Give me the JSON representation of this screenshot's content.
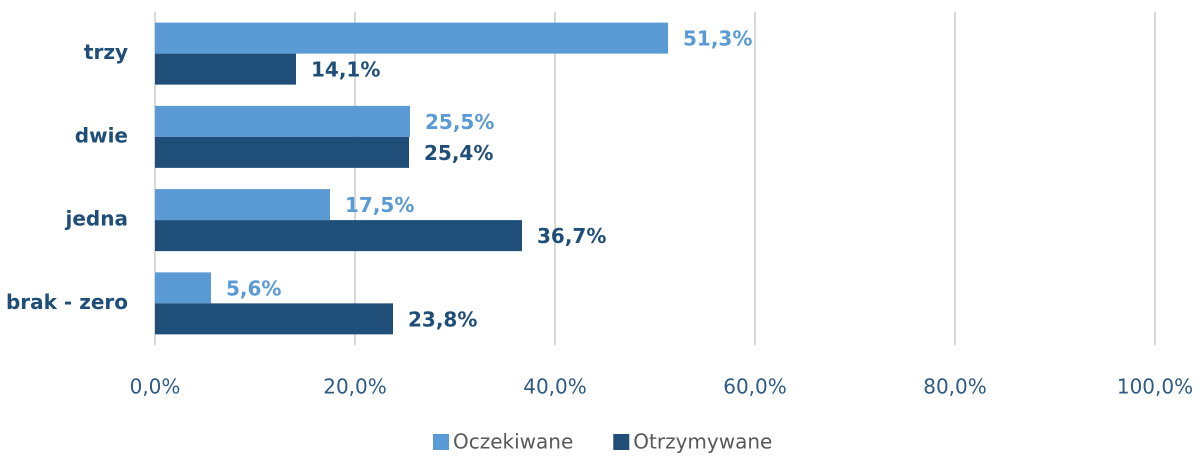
{
  "chart_data": {
    "type": "hbar",
    "categories": [
      "trzy",
      "dwie",
      "jedna",
      "brak - zero"
    ],
    "series": [
      {
        "name": "Oczekiwane",
        "color": "#5b9bd5",
        "values": [
          51.3,
          25.5,
          17.5,
          5.6
        ],
        "value_labels": [
          "51,3%",
          "25,5%",
          "17,5%",
          "5,6%"
        ]
      },
      {
        "name": "Otrzymywane",
        "color": "#1f4e79",
        "values": [
          14.1,
          25.4,
          36.7,
          23.8
        ],
        "value_labels": [
          "14,1%",
          "25,4%",
          "36,7%",
          "23,8%"
        ]
      }
    ],
    "xlim": [
      0,
      100
    ],
    "xticks": [
      {
        "value": 0,
        "label": "0,0%"
      },
      {
        "value": 20,
        "label": "20,0%"
      },
      {
        "value": 40,
        "label": "40,0%"
      },
      {
        "value": 60,
        "label": "60,0%"
      },
      {
        "value": 80,
        "label": "80,0%"
      },
      {
        "value": 100,
        "label": "100,0%"
      }
    ],
    "grid": true,
    "legend": "bottom"
  }
}
